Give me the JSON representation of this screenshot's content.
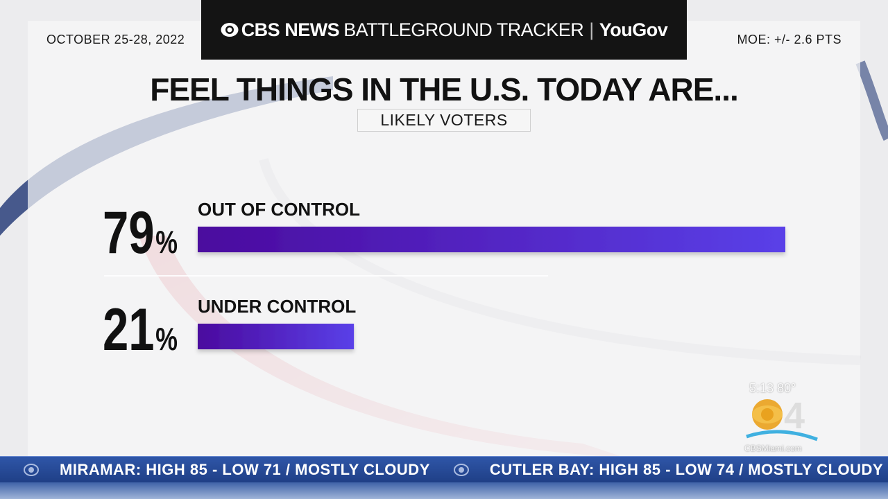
{
  "header": {
    "date": "OCTOBER 25-28, 2022",
    "brand_news": "CBS NEWS",
    "brand_tracker": "BATTLEGROUND TRACKER",
    "brand_separator": "|",
    "brand_partner": "YouGov",
    "moe": "MOE: +/- 2.6 PTS"
  },
  "chart_data": {
    "type": "bar",
    "orientation": "horizontal",
    "title": "FEEL THINGS IN THE U.S. TODAY ARE...",
    "subtitle": "LIKELY VOTERS",
    "categories": [
      "OUT OF CONTROL",
      "UNDER CONTROL"
    ],
    "values": [
      79,
      21
    ],
    "value_suffix": "%",
    "xlim": [
      0,
      79
    ],
    "grid": false,
    "bar_color_start": "#4b0a9e",
    "bar_color_end": "#5a40e8"
  },
  "station": {
    "time": "5:13",
    "temp": "80°",
    "logo_url": "CBSMiami.com"
  },
  "ticker": {
    "items": [
      "MIRAMAR: HIGH 85 - LOW 71 / MOSTLY CLOUDY",
      "CUTLER BAY: HIGH 85 - LOW 74 / MOSTLY CLOUDY"
    ]
  },
  "colors": {
    "header_bg": "#141414",
    "ticker_bg": "#2f56a8"
  }
}
